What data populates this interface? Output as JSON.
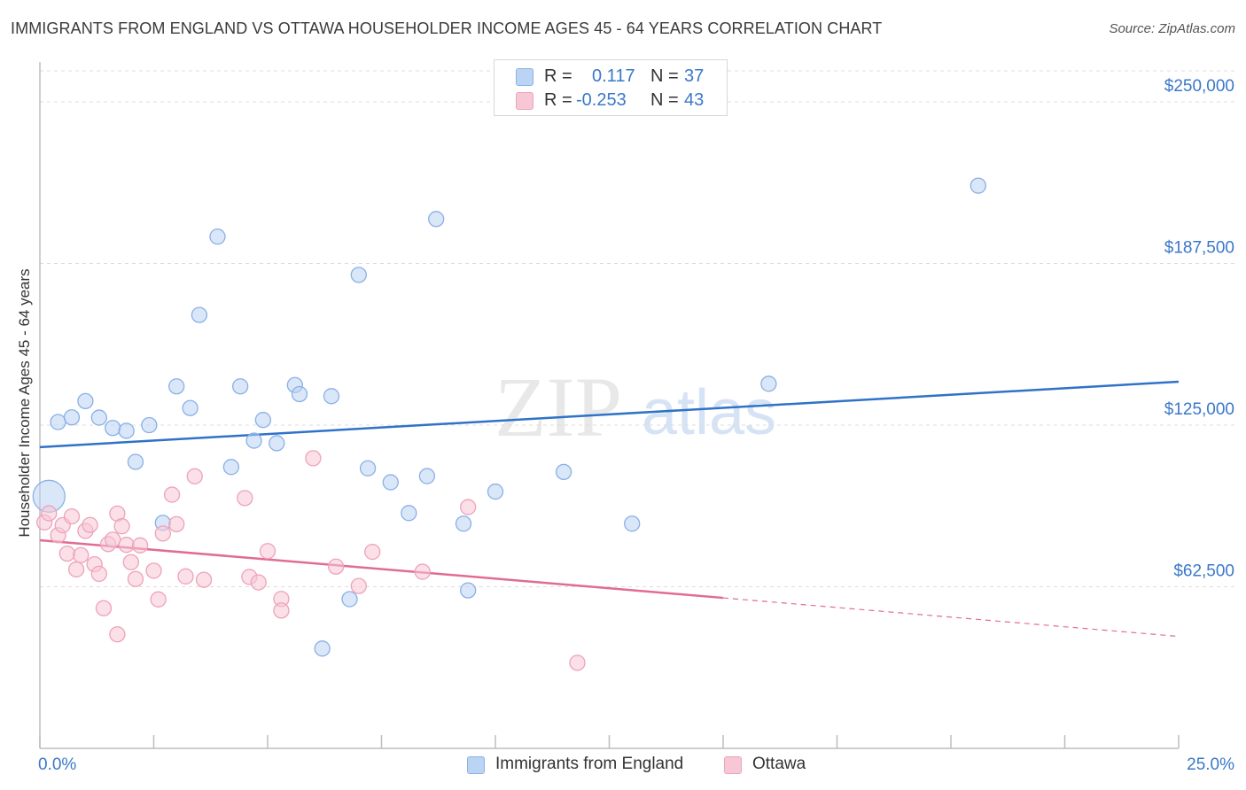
{
  "title": "IMMIGRANTS FROM ENGLAND VS OTTAWA HOUSEHOLDER INCOME AGES 45 - 64 YEARS CORRELATION CHART",
  "source": "Source: ZipAtlas.com",
  "watermark": {
    "zip": "ZIP",
    "atlas": "atlas"
  },
  "legend_top": {
    "series": [
      {
        "r_label": "R =",
        "r_value": "0.117",
        "n_label": "N =",
        "n_value": "37"
      },
      {
        "r_label": "R =",
        "r_value": "-0.253",
        "n_label": "N =",
        "n_value": "43"
      }
    ]
  },
  "legend_bottom": [
    "Immigrants from England",
    "Ottawa"
  ],
  "colors": {
    "blue_fill": "#bcd4f3",
    "blue_stroke": "#8ab0e6",
    "blue_line": "#2f72c8",
    "pink_fill": "#f8c7d6",
    "pink_stroke": "#eea2bb",
    "pink_line": "#e06c96",
    "axis_text": "#3a78c9",
    "grid": "#dcdcdc"
  },
  "chart_data": {
    "type": "scatter",
    "xlabel": "",
    "ylabel": "Householder Income Ages 45 - 64 years",
    "x_ticks": [
      "0.0%",
      "25.0%"
    ],
    "y_ticks": [
      "$62,500",
      "$125,000",
      "$187,500",
      "$250,000"
    ],
    "y_tick_values": [
      62500,
      125000,
      187500,
      250000
    ],
    "xlim": [
      0,
      25
    ],
    "ylim": [
      0,
      262000
    ],
    "grid": "horizontal dashed",
    "legend_placement": "top-center and bottom-center",
    "series": [
      {
        "name": "Immigrants from England",
        "color": "blue",
        "trend": {
          "x": [
            0,
            25
          ],
          "y": [
            116500,
            141800
          ]
        },
        "points": [
          [
            0.2,
            97500
          ],
          [
            0.4,
            126200
          ],
          [
            0.7,
            128000
          ],
          [
            1.0,
            134300
          ],
          [
            1.3,
            127900
          ],
          [
            1.6,
            123900
          ],
          [
            1.9,
            122800
          ],
          [
            2.1,
            110800
          ],
          [
            2.4,
            125000
          ],
          [
            2.7,
            87200
          ],
          [
            3.0,
            140000
          ],
          [
            3.3,
            131600
          ],
          [
            3.5,
            167600
          ],
          [
            3.9,
            197900
          ],
          [
            4.2,
            108800
          ],
          [
            4.4,
            140000
          ],
          [
            4.7,
            119000
          ],
          [
            4.9,
            127000
          ],
          [
            5.2,
            118000
          ],
          [
            5.6,
            140500
          ],
          [
            5.7,
            137000
          ],
          [
            6.4,
            136200
          ],
          [
            6.8,
            57700
          ],
          [
            6.2,
            38600
          ],
          [
            7.0,
            183100
          ],
          [
            7.2,
            108300
          ],
          [
            7.7,
            102900
          ],
          [
            8.1,
            91000
          ],
          [
            8.5,
            105300
          ],
          [
            8.7,
            204700
          ],
          [
            9.3,
            86900
          ],
          [
            9.4,
            61100
          ],
          [
            10.0,
            99300
          ],
          [
            11.5,
            106900
          ],
          [
            13.0,
            86900
          ],
          [
            16.0,
            141000
          ],
          [
            20.6,
            217600
          ]
        ]
      },
      {
        "name": "Ottawa",
        "color": "pink",
        "trend": {
          "x": [
            0,
            15
          ],
          "y": [
            80500,
            58200
          ]
        },
        "trend_dashed": {
          "x": [
            15,
            25
          ],
          "y": [
            58200,
            43300
          ]
        },
        "points": [
          [
            0.1,
            87400
          ],
          [
            0.2,
            90900
          ],
          [
            0.4,
            82400
          ],
          [
            0.5,
            86300
          ],
          [
            0.6,
            75300
          ],
          [
            0.7,
            89700
          ],
          [
            0.8,
            69200
          ],
          [
            0.9,
            74700
          ],
          [
            1.0,
            84100
          ],
          [
            1.1,
            86400
          ],
          [
            1.2,
            71200
          ],
          [
            1.3,
            67500
          ],
          [
            1.4,
            54200
          ],
          [
            1.5,
            79000
          ],
          [
            1.6,
            80700
          ],
          [
            1.7,
            44100
          ],
          [
            1.7,
            90800
          ],
          [
            1.8,
            85900
          ],
          [
            1.9,
            78700
          ],
          [
            2.0,
            72000
          ],
          [
            2.1,
            65500
          ],
          [
            2.2,
            78500
          ],
          [
            2.5,
            68700
          ],
          [
            2.6,
            57600
          ],
          [
            2.7,
            83100
          ],
          [
            2.9,
            98100
          ],
          [
            3.0,
            86700
          ],
          [
            3.2,
            66500
          ],
          [
            3.4,
            105200
          ],
          [
            3.6,
            65200
          ],
          [
            4.5,
            96800
          ],
          [
            4.6,
            66300
          ],
          [
            4.8,
            64200
          ],
          [
            5.0,
            76300
          ],
          [
            5.3,
            57800
          ],
          [
            5.3,
            53300
          ],
          [
            6.0,
            112200
          ],
          [
            6.5,
            70300
          ],
          [
            7.0,
            62800
          ],
          [
            7.3,
            76000
          ],
          [
            8.4,
            68300
          ],
          [
            9.4,
            93300
          ],
          [
            11.8,
            33100
          ]
        ]
      }
    ]
  }
}
